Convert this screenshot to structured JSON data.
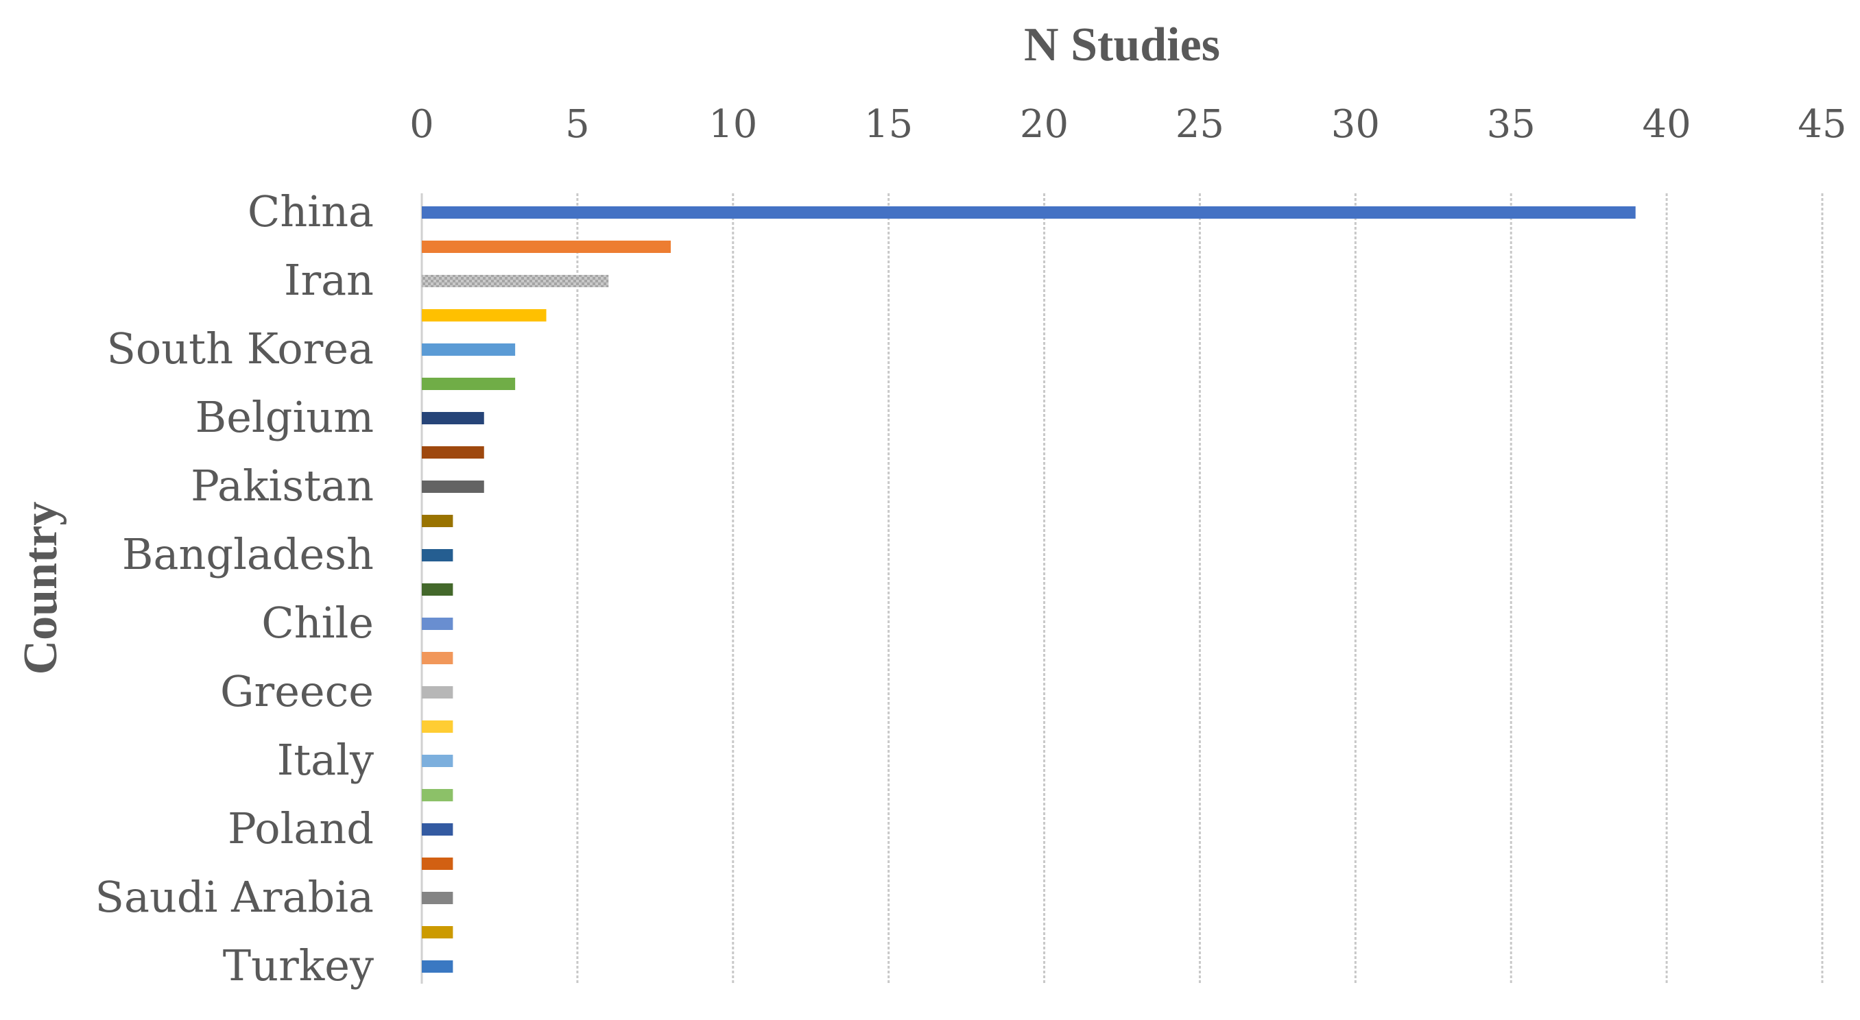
{
  "chart_data": {
    "type": "bar",
    "orientation": "horizontal",
    "xlabel": "N Studies",
    "ylabel": "Country",
    "xlim": [
      0,
      45
    ],
    "xticks": [
      0,
      5,
      10,
      15,
      20,
      25,
      30,
      35,
      40,
      45
    ],
    "x_axis_position": "top",
    "grid": true,
    "legend": "none",
    "categories": [
      "China",
      "",
      "Iran",
      "",
      "South Korea",
      "",
      "Belgium",
      "",
      "Pakistan",
      "",
      "Bangladesh",
      "",
      "Chile",
      "",
      "Greece",
      "",
      "Italy",
      "",
      "Poland",
      "",
      "Saudi Arabia",
      "",
      "Turkey"
    ],
    "values": [
      39,
      8,
      6,
      4,
      3,
      3,
      2,
      2,
      2,
      1,
      1,
      1,
      1,
      1,
      1,
      1,
      1,
      1,
      1,
      1,
      1,
      1,
      1
    ],
    "colors": [
      "#4472C4",
      "#ED7D31",
      "#A5A5A5",
      "#FFC000",
      "#5B9BD5",
      "#70AD47",
      "#264478",
      "#9E480E",
      "#636363",
      "#997300",
      "#255E91",
      "#43682B",
      "#698ED0",
      "#F1975A",
      "#B7B7B7",
      "#FFCD33",
      "#7CAFDD",
      "#8CC168",
      "#335AA1",
      "#D26012",
      "#848484",
      "#CC9A00",
      "#3A78C2"
    ]
  }
}
